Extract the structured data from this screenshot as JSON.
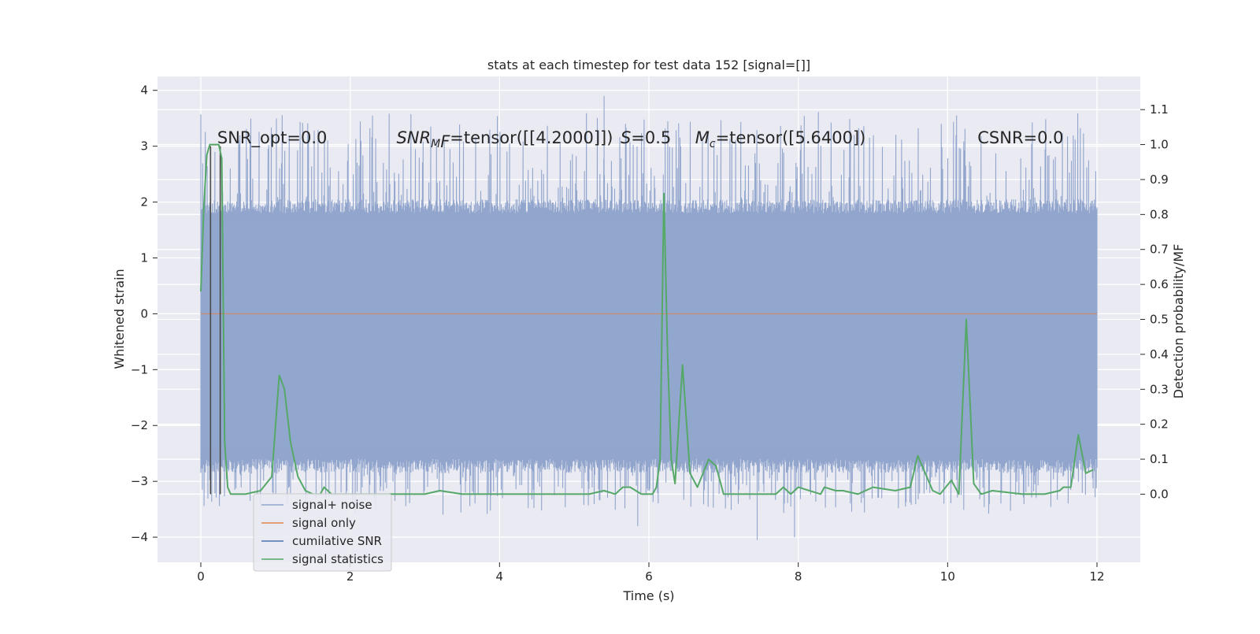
{
  "chart_data": {
    "type": "line",
    "title": "stats at each timestep for test data 152 [signal=[]]",
    "xlabel": "Time (s)",
    "ylabel_left": "Whitened strain",
    "ylabel_right": "Detection probability/MF",
    "xlim": [
      -0.58,
      12.58
    ],
    "ylim_left": [
      -4.45,
      4.25
    ],
    "ylim_right": [
      -0.195,
      1.195
    ],
    "x_ticks": [
      0,
      2,
      4,
      6,
      8,
      10,
      12
    ],
    "y_left_ticks": [
      4,
      3,
      2,
      1,
      0,
      -1,
      -2,
      -3,
      -4
    ],
    "y_right_ticks": [
      1.1,
      1.0,
      0.9,
      0.8,
      0.7,
      0.6,
      0.5,
      0.4,
      0.3,
      0.2,
      0.1,
      0.0
    ],
    "y_right_tick_labels": [
      "1.1",
      "1.0",
      "0.9",
      "0.8",
      "0.7",
      "0.6",
      "0.5",
      "0.4",
      "0.3",
      "0.2",
      "0.1",
      "0.0"
    ],
    "grid": true,
    "legend_position": "lower-left",
    "annotations": [
      {
        "text": "SNR_opt=0.0",
        "x": 0.22
      },
      {
        "text": "SNR_MF=tensor([[4.2000]])",
        "x": 2.62
      },
      {
        "text": "S=0.5",
        "x": 5.62
      },
      {
        "text": "M_c=tensor([5.6400])",
        "x": 6.62
      },
      {
        "text": "CSNR=0.0",
        "x": 10.4
      }
    ],
    "annotation_y": 3.15,
    "series": [
      {
        "name": "signal+ noise",
        "color": "#92a6cd",
        "axis": "left",
        "duration_s": 12,
        "band_low": -2.6,
        "band_high": 1.8,
        "extreme_points": [
          {
            "x": 5.4,
            "y": 3.9
          },
          {
            "x": 5.85,
            "y": -3.8
          },
          {
            "x": 7.45,
            "y": -4.05
          },
          {
            "x": 7.95,
            "y": -4.0
          },
          {
            "x": 10.12,
            "y": 3.55
          },
          {
            "x": 9.95,
            "y": -3.4
          },
          {
            "x": 0.02,
            "y": -3.15
          }
        ]
      },
      {
        "name": "signal only",
        "color": "#dd8452",
        "axis": "left",
        "x": [
          0,
          12
        ],
        "y": [
          0,
          0
        ]
      },
      {
        "name": "cumilative SNR",
        "color": "#4c72b0",
        "axis": "left",
        "x": [],
        "y": []
      },
      {
        "name": "signal statistics",
        "color": "#55a868",
        "axis": "right",
        "x": [
          0.0,
          0.04,
          0.08,
          0.12,
          0.16,
          0.2,
          0.24,
          0.28,
          0.32,
          0.36,
          0.4,
          0.5,
          0.6,
          0.8,
          0.95,
          1.05,
          1.12,
          1.2,
          1.3,
          1.4,
          1.5,
          1.6,
          1.65,
          1.75,
          2.0,
          2.5,
          3.0,
          3.2,
          3.5,
          4.0,
          4.5,
          5.0,
          5.2,
          5.4,
          5.55,
          5.65,
          5.75,
          5.9,
          6.05,
          6.1,
          6.15,
          6.2,
          6.25,
          6.3,
          6.35,
          6.45,
          6.55,
          6.65,
          6.8,
          6.9,
          7.0,
          7.2,
          7.5,
          7.7,
          7.8,
          7.9,
          8.0,
          8.3,
          8.35,
          8.5,
          8.6,
          8.8,
          9.0,
          9.3,
          9.5,
          9.6,
          9.7,
          9.8,
          9.9,
          10.05,
          10.15,
          10.25,
          10.35,
          10.45,
          10.6,
          11.0,
          11.3,
          11.5,
          11.55,
          11.65,
          11.75,
          11.85,
          11.95
        ],
        "y": [
          0.58,
          0.82,
          0.97,
          1.0,
          1.0,
          1.0,
          1.0,
          0.96,
          0.15,
          0.02,
          0.0,
          0.0,
          0.0,
          0.01,
          0.05,
          0.34,
          0.3,
          0.15,
          0.05,
          0.01,
          0.0,
          0.0,
          0.02,
          0.0,
          0.0,
          0.0,
          0.0,
          0.01,
          0.0,
          0.0,
          0.0,
          0.0,
          0.0,
          0.01,
          0.0,
          0.02,
          0.02,
          0.0,
          0.0,
          0.02,
          0.1,
          0.86,
          0.4,
          0.1,
          0.03,
          0.37,
          0.06,
          0.02,
          0.1,
          0.08,
          0.0,
          0.0,
          0.0,
          0.0,
          0.02,
          0.0,
          0.02,
          0.0,
          0.02,
          0.01,
          0.01,
          0.0,
          0.02,
          0.01,
          0.02,
          0.11,
          0.06,
          0.01,
          0.0,
          0.04,
          0.0,
          0.5,
          0.03,
          0.0,
          0.01,
          0.0,
          0.0,
          0.01,
          0.02,
          0.02,
          0.17,
          0.06,
          0.07
        ]
      }
    ],
    "vertical_lines": {
      "color": "#4a4a4a",
      "x": [
        0.13,
        0.26
      ],
      "y_from": -3.23,
      "y_to": 3.0
    }
  }
}
